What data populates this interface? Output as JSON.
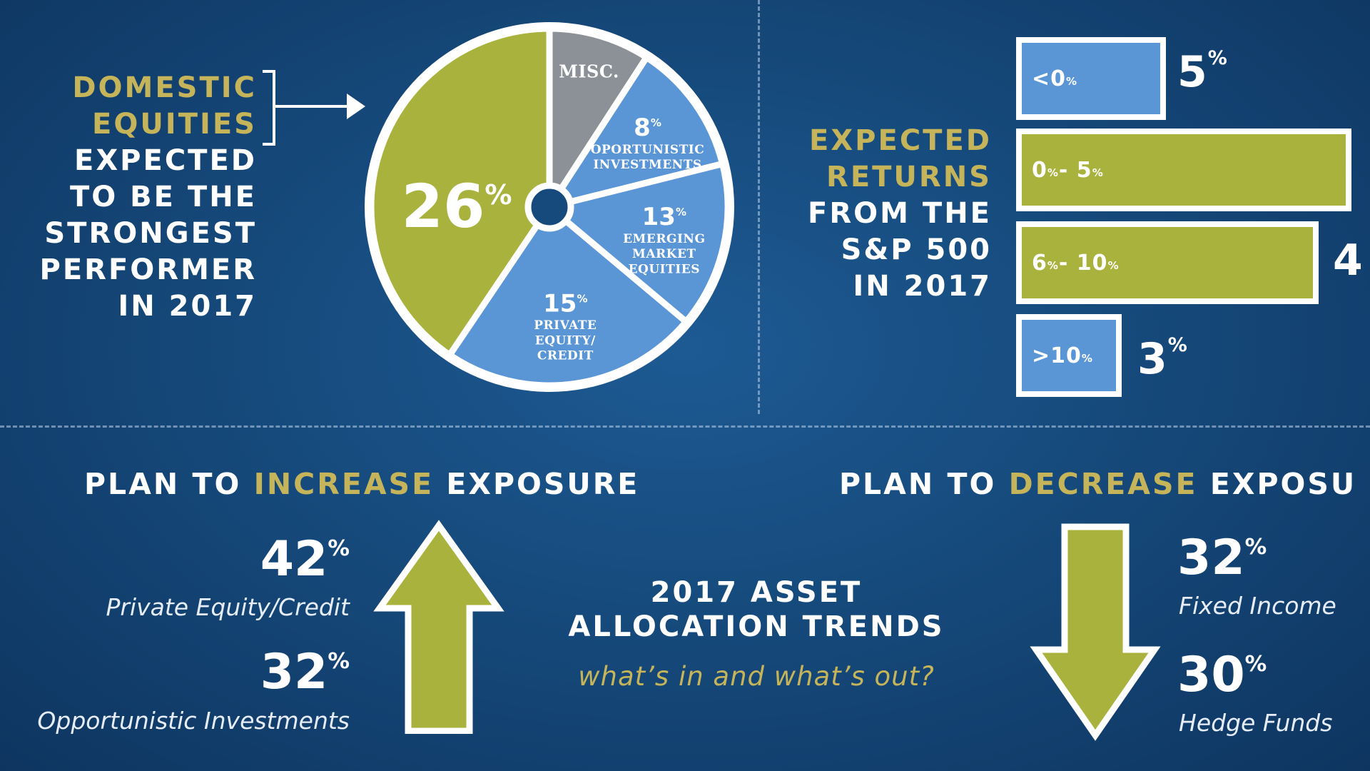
{
  "colors": {
    "background": "#164a7c",
    "olive": "#a8b23c",
    "light_blue": "#5a95d6",
    "misc_gray": "#8c9097",
    "gold_text": "#c5b45a",
    "white": "#ffffff"
  },
  "domestic": {
    "line1": "DOMESTIC",
    "line2": "EQUITIES",
    "line3": "EXPECTED",
    "line4": "TO BE THE",
    "line5": "STRONGEST",
    "line6": "PERFORMER",
    "line7": "IN 2017"
  },
  "returns_headline": {
    "line1": "EXPECTED",
    "line2": "RETURNS",
    "line3": "FROM THE",
    "line4": "S&P 500",
    "line5": "IN 2017"
  },
  "increase": {
    "title_pre": "PLAN TO ",
    "title_key": "INCREASE",
    "title_post": " EXPOSURE",
    "items": [
      {
        "num": "42",
        "sym": "%",
        "label": "Private Equity/Credit"
      },
      {
        "num": "32",
        "sym": "%",
        "label": "Opportunistic Investments"
      }
    ]
  },
  "decrease": {
    "title_pre": "PLAN TO ",
    "title_key": "DECREASE",
    "title_post": " EXPOSU",
    "items": [
      {
        "num": "32",
        "sym": "%",
        "label": "Fixed Income"
      },
      {
        "num": "30",
        "sym": "%",
        "label": "Hedge Funds"
      }
    ]
  },
  "center": {
    "title_line1": "2017 ASSET",
    "title_line2": "ALLOCATION TRENDS",
    "subtitle": "what’s in and what’s out?"
  },
  "chart_data": [
    {
      "type": "pie",
      "title": "",
      "slices": [
        {
          "value": 26,
          "num": "26",
          "sym": "%",
          "lines": [],
          "color": "#a8b23c",
          "start": 180,
          "end": 360
        },
        {
          "value": null,
          "num": "",
          "sym": "",
          "lines": [
            "MISC."
          ],
          "color": "#8c9097",
          "start": 0,
          "end": 33
        },
        {
          "value": 8,
          "num": "8",
          "sym": "%",
          "lines": [
            "OPORTUNISTIC",
            "INVESTMENTS"
          ],
          "color": "#5a95d6",
          "start": 33,
          "end": 76
        },
        {
          "value": 13,
          "num": "13",
          "sym": "%",
          "lines": [
            "EMERGING",
            "MARKET",
            "EQUITIES"
          ],
          "color": "#5a95d6",
          "start": 76,
          "end": 130
        },
        {
          "value": 15,
          "num": "15",
          "sym": "%",
          "lines": [
            "PRIVATE",
            "EQUITY/",
            "CREDIT"
          ],
          "color": "#5a95d6",
          "start": 130,
          "end": 214
        }
      ]
    },
    {
      "type": "bar",
      "orientation": "horizontal",
      "title": "",
      "categories": [
        "<0%",
        "0% - 5%",
        "6% - 10%",
        ">10%"
      ],
      "values": [
        5,
        null,
        null,
        3
      ],
      "value_labels": [
        {
          "num": "5",
          "sym": "%"
        },
        {
          "num": "",
          "sym": ""
        },
        {
          "num": "4",
          "sym": ""
        },
        {
          "num": "3",
          "sym": "%"
        }
      ],
      "bar_parts": [
        [
          {
            "t": "<0"
          },
          {
            "t": "%",
            "s": true
          }
        ],
        [
          {
            "t": "0"
          },
          {
            "t": "%",
            "s": true
          },
          {
            "t": " - 5"
          },
          {
            "t": "%",
            "s": true
          }
        ],
        [
          {
            "t": "6"
          },
          {
            "t": "%",
            "s": true
          },
          {
            "t": " - 10"
          },
          {
            "t": "%",
            "s": true
          }
        ],
        [
          {
            "t": ">10"
          },
          {
            "t": "%",
            "s": true
          }
        ]
      ],
      "colors": [
        "#5a95d6",
        "#a8b23c",
        "#a8b23c",
        "#5a95d6"
      ]
    }
  ]
}
